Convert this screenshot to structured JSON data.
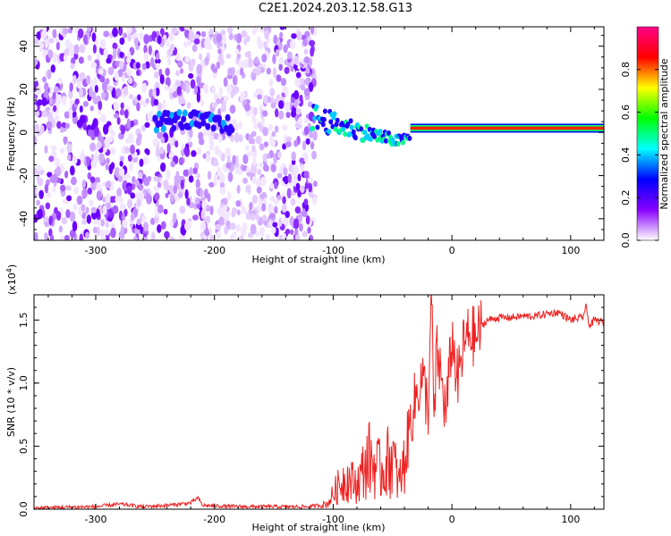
{
  "title": "C2E1.2024.203.12.58.G13",
  "chart_data": [
    {
      "type": "heatmap",
      "xlabel": "Height of straight line (km)",
      "ylabel": "Frequency (Hz)",
      "xlim": [
        -352,
        128
      ],
      "ylim": [
        -50,
        49
      ],
      "xticks": [
        -300,
        -200,
        -100,
        0,
        100
      ],
      "yticks": [
        -40,
        -20,
        0,
        20,
        40
      ],
      "colorbar": {
        "label": "Normalized spectral amplitude",
        "range": [
          0,
          1
        ],
        "ticks": [
          "0.0",
          "0.2",
          "0.4",
          "0.6",
          "0.8"
        ],
        "colors": [
          "#ffffff",
          "#8800ff",
          "#0000ff",
          "#00ffff",
          "#00ff00",
          "#ffff00",
          "#ff0000",
          "#ff0088"
        ]
      },
      "noise_region": {
        "x": [
          -352,
          -115
        ],
        "y": [
          -50,
          49
        ]
      },
      "trace": {
        "x": [
          -280,
          -250,
          -230,
          -210,
          -190,
          -115,
          -100,
          -80,
          -60,
          -45,
          -35,
          -20,
          0,
          20,
          40,
          60,
          80,
          100,
          128
        ],
        "y": [
          5,
          5,
          6,
          5,
          3,
          7,
          4,
          1,
          -2,
          -4,
          -2,
          1,
          2,
          2,
          2,
          2,
          2,
          2,
          2
        ]
      }
    },
    {
      "type": "line",
      "xlabel": "Height of straight line (km)",
      "ylabel": "SNR (10 * v/v)",
      "scale_label": "(x10",
      "scale_exp": "4",
      "scale_close": ")",
      "xlim": [
        -352,
        128
      ],
      "ylim": [
        0,
        1.7
      ],
      "xticks": [
        -300,
        -200,
        -100,
        0,
        100
      ],
      "yticks": [
        "0.0",
        "0.5",
        "1.0",
        "1.5"
      ],
      "line_color": "#ee2222",
      "series": [
        {
          "x": [
            -352,
            -300,
            -280,
            -260,
            -240,
            -220,
            -214,
            -210,
            -180,
            -150,
            -120,
            -105,
            -98,
            -90,
            -80,
            -70,
            -60,
            -50,
            -45,
            -40,
            -35,
            -30,
            -25,
            -20,
            -17,
            -15,
            -13,
            -10,
            -5,
            0,
            5,
            10,
            15,
            20,
            25,
            30,
            40,
            50,
            60,
            70,
            80,
            90,
            100,
            110,
            113,
            116,
            120,
            128
          ],
          "y": [
            0.01,
            0.02,
            0.04,
            0.02,
            0.03,
            0.05,
            0.09,
            0.03,
            0.02,
            0.02,
            0.02,
            0.04,
            0.15,
            0.25,
            0.2,
            0.4,
            0.3,
            0.42,
            0.2,
            0.35,
            0.7,
            0.9,
            1.05,
            0.8,
            1.7,
            0.6,
            1.25,
            1.1,
            0.75,
            1.35,
            1.0,
            1.3,
            1.4,
            1.35,
            1.45,
            1.5,
            1.52,
            1.52,
            1.53,
            1.53,
            1.55,
            1.56,
            1.5,
            1.52,
            1.6,
            1.45,
            1.5,
            1.48
          ]
        }
      ]
    }
  ]
}
